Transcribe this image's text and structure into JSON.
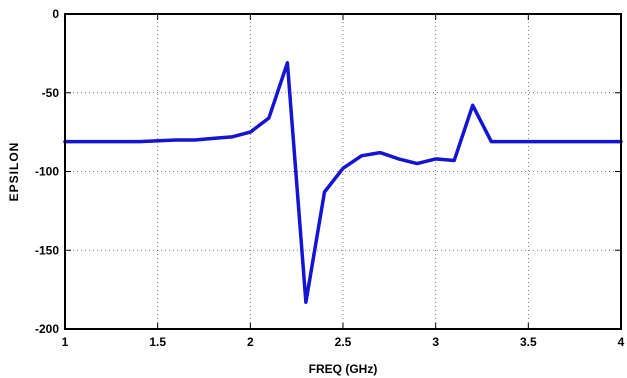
{
  "chart_data": {
    "type": "line",
    "title": "",
    "xlabel": "FREQ (GHz)",
    "ylabel": "EPSILON",
    "xlim": [
      1,
      4
    ],
    "ylim": [
      -200,
      0
    ],
    "grid": true,
    "line_color": "#1414d2",
    "x_ticks": [
      1,
      1.5,
      2,
      2.5,
      3,
      3.5,
      4
    ],
    "x_tick_labels": [
      "1",
      "1.5",
      "2",
      "2.5",
      "3",
      "3.5",
      "4"
    ],
    "y_ticks": [
      0,
      -50,
      -100,
      -150,
      -200
    ],
    "y_tick_labels": [
      "0",
      "-50",
      "-100",
      "-150",
      "-200"
    ],
    "series": [
      {
        "x": [
          1.0,
          1.2,
          1.4,
          1.6,
          1.7,
          1.8,
          1.9,
          2.0,
          2.1,
          2.2,
          2.3,
          2.4,
          2.5,
          2.6,
          2.7,
          2.8,
          2.9,
          3.0,
          3.1,
          3.2,
          3.3,
          3.4,
          3.6,
          3.8,
          4.0
        ],
        "y": [
          -81,
          -81,
          -81,
          -80,
          -80,
          -79,
          -78,
          -75,
          -66,
          -31,
          -183,
          -113,
          -98,
          -90,
          -88,
          -92,
          -95,
          -92,
          -93,
          -58,
          -81,
          -81,
          -81,
          -81,
          -81
        ]
      }
    ]
  }
}
